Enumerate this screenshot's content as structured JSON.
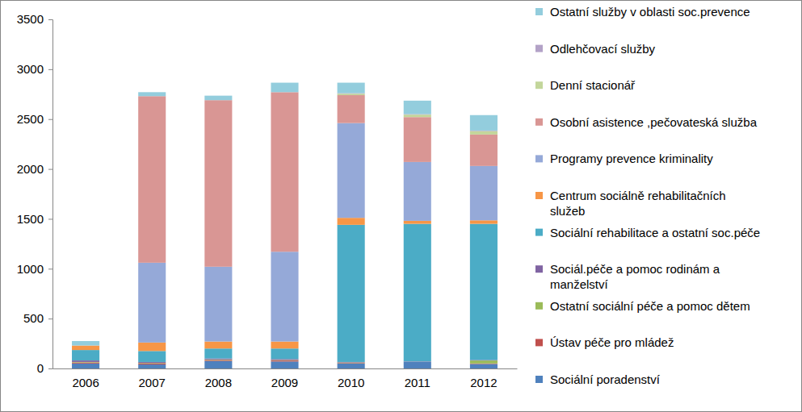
{
  "chart_data": {
    "type": "bar",
    "stacked": true,
    "grid": false,
    "legend": "right",
    "categories": [
      "2006",
      "2007",
      "2008",
      "2009",
      "2010",
      "2011",
      "2012"
    ],
    "ylim": [
      0,
      3500
    ],
    "yticks": [
      0,
      500,
      1000,
      1500,
      2000,
      2500,
      3000,
      3500
    ],
    "series": [
      {
        "name": "Sociální poradenství",
        "color": "#4f81bd",
        "values": [
          50,
          40,
          75,
          70,
          50,
          65,
          45
        ]
      },
      {
        "name": "Ústav péče pro mládež",
        "color": "#c0504d",
        "values": [
          10,
          10,
          10,
          10,
          5,
          0,
          5
        ]
      },
      {
        "name": "Ostatní sociální péče a pomoc dětem",
        "color": "#9bbb59",
        "values": [
          5,
          5,
          5,
          5,
          5,
          0,
          30
        ]
      },
      {
        "name": "Sociál.péče a pomoc rodinám a manželství",
        "color": "#8064a2",
        "values": [
          15,
          10,
          10,
          10,
          5,
          5,
          5
        ]
      },
      {
        "name": "Sociální rehabilitace a ostatní soc.péče",
        "color": "#4bacc6",
        "values": [
          105,
          110,
          100,
          105,
          1375,
          1380,
          1365
        ]
      },
      {
        "name": "Centrum sociálně rehabilitačních služeb",
        "color": "#f79646",
        "values": [
          45,
          85,
          70,
          70,
          70,
          30,
          35
        ]
      },
      {
        "name": "Programy prevence kriminality",
        "color": "#95a9d8",
        "values": [
          0,
          800,
          750,
          900,
          950,
          590,
          545
        ]
      },
      {
        "name": "Osobní asistence ,pečovateská služba",
        "color": "#d99694",
        "values": [
          0,
          1670,
          1670,
          1600,
          280,
          450,
          315
        ]
      },
      {
        "name": "Denní stacionář",
        "color": "#c3d69b",
        "values": [
          0,
          0,
          0,
          0,
          15,
          25,
          35
        ]
      },
      {
        "name": "Odlehčovací služby",
        "color": "#b3a2c7",
        "values": [
          0,
          0,
          0,
          0,
          5,
          5,
          5
        ]
      },
      {
        "name": "Ostatní služby v oblasti soc.prevence",
        "color": "#93cddd",
        "values": [
          45,
          40,
          45,
          95,
          105,
          135,
          155
        ]
      }
    ]
  }
}
